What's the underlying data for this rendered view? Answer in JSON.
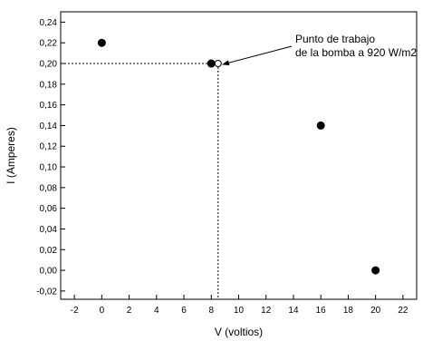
{
  "chart_data": {
    "type": "scatter",
    "xlabel": "V (voltios)",
    "ylabel": "I (Amperes)",
    "xlim": [
      -3,
      23
    ],
    "ylim": [
      -0.028,
      0.25
    ],
    "x_ticks": [
      -2,
      0,
      2,
      4,
      6,
      8,
      10,
      12,
      14,
      16,
      18,
      20,
      22
    ],
    "y_ticks": [
      -0.02,
      0.0,
      0.02,
      0.04,
      0.06,
      0.08,
      0.1,
      0.12,
      0.14,
      0.16,
      0.18,
      0.2,
      0.22,
      0.24
    ],
    "x_tick_labels": [
      "-2",
      "0",
      "2",
      "4",
      "6",
      "8",
      "10",
      "12",
      "14",
      "16",
      "18",
      "20",
      "22"
    ],
    "y_tick_labels": [
      "-0,02",
      "0,00",
      "0,02",
      "0,04",
      "0,06",
      "0,08",
      "0,10",
      "0,12",
      "0,14",
      "0,16",
      "0,18",
      "0,20",
      "0,22",
      "0,24"
    ],
    "points": [
      {
        "x": 0,
        "y": 0.22
      },
      {
        "x": 8,
        "y": 0.2
      },
      {
        "x": 16,
        "y": 0.14
      },
      {
        "x": 20,
        "y": 0.0
      }
    ],
    "operating_point": {
      "x": 8.5,
      "y": 0.2
    },
    "annotation": {
      "lines": [
        "Punto de trabajo",
        "de la bomba a 920 W/m2"
      ]
    },
    "grid": false
  }
}
